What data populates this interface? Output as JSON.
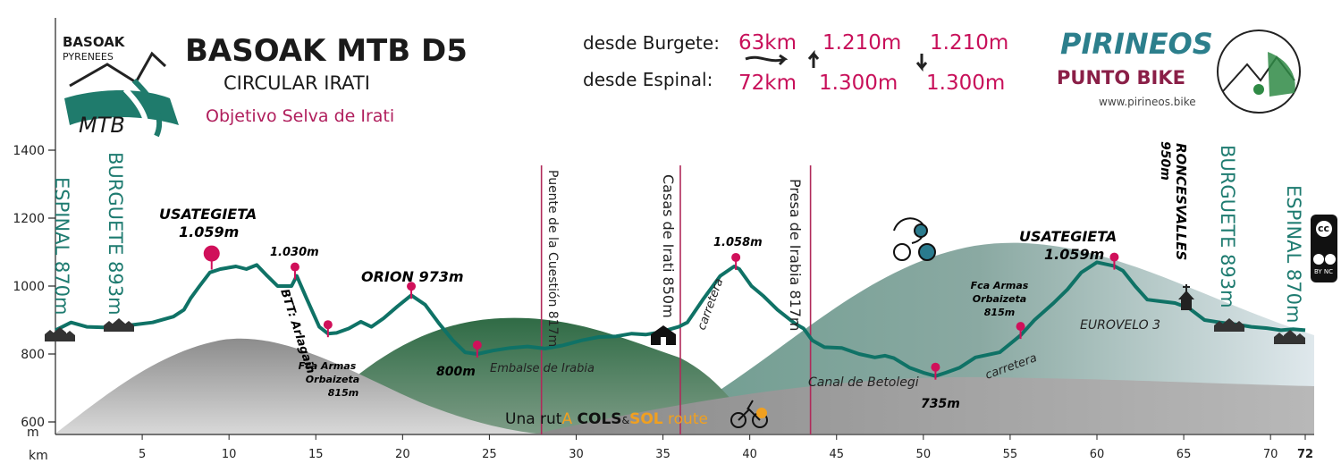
{
  "header": {
    "logo_line1": "BASOAK",
    "logo_line2": "PYRENEES",
    "logo_mtb": "MTB",
    "title": "BASOAK MTB D5",
    "subtitle": "CIRCULAR IRATI",
    "objective": "Objetivo Selva de Irati",
    "stats": [
      {
        "label": "desde Burgete:",
        "distance": "63km",
        "ascent": "1.210m",
        "descent": "1.210m"
      },
      {
        "label": "desde Espinal:",
        "distance": "72km",
        "ascent": "1.300m",
        "descent": "1.300m"
      }
    ],
    "brand_line1": "PIRINEOS",
    "brand_line2": "PUNTO BIKE",
    "brand_url": "www.pirineos.bike",
    "footer_route": {
      "p1": "Una rut",
      "p2": "A ",
      "p3": "COLS",
      "p4": "&",
      "p5": "SOL",
      "p6": " route"
    }
  },
  "colors": {
    "profile_line": "#0f7266",
    "marker": "#d0105a",
    "divider": "#b02a5a",
    "town": "#1e7b70",
    "brand_teal": "#2c7f8c",
    "brand_maroon": "#8a1f47"
  },
  "chart_data": {
    "type": "area",
    "title": "",
    "xlabel": "km",
    "ylabel": "m",
    "xlim": [
      0,
      72
    ],
    "ylim": [
      580,
      1450
    ],
    "x_ticks": [
      5,
      10,
      15,
      20,
      25,
      30,
      35,
      40,
      45,
      50,
      55,
      60,
      65,
      70,
      72
    ],
    "y_ticks": [
      600,
      800,
      1000,
      1200,
      1400
    ],
    "series": [
      {
        "x": [
          0,
          0.9,
          1.8,
          3,
          4.3,
          5.6,
          6.8,
          7.4,
          7.8,
          8.3,
          8.9,
          9.5,
          10.4,
          11,
          11.6,
          12.2,
          12.8,
          13.6,
          13.9,
          14.5,
          15.2,
          15.7,
          16.2,
          16.9,
          17.6,
          18.2,
          18.9,
          19.7,
          20.5,
          21.3,
          22.1,
          22.9,
          23.6,
          24.3,
          25.2,
          26.2,
          27.2,
          28.2,
          29.2,
          30.3,
          31.3,
          32.3,
          33.2,
          34,
          34.6,
          35.2,
          35.9,
          36.4,
          37.3,
          38.3,
          39.1,
          39.4,
          40.1,
          40.8,
          41.6,
          42.6,
          43.1,
          43.6,
          44.3,
          45.3,
          46.3,
          47.2,
          47.8,
          48.3,
          49.2,
          50,
          50.7,
          51.3,
          52.1,
          53,
          54.4,
          55.6,
          56.4,
          57.5,
          58.3,
          59.1,
          60,
          61,
          61.5,
          62.2,
          62.9,
          63.7,
          64.5,
          65.3,
          66.2,
          67.1,
          68,
          68.9,
          69.8,
          70.6,
          71.3,
          72
        ],
        "y": [
          870,
          893,
          880,
          878,
          885,
          893,
          910,
          930,
          965,
          1000,
          1040,
          1050,
          1058,
          1050,
          1062,
          1030,
          1000,
          1000,
          1030,
          960,
          880,
          860,
          862,
          875,
          895,
          880,
          905,
          940,
          973,
          945,
          890,
          840,
          805,
          800,
          810,
          818,
          822,
          816,
          825,
          840,
          850,
          852,
          860,
          857,
          862,
          870,
          880,
          893,
          960,
          1030,
          1058,
          1050,
          1000,
          970,
          930,
          890,
          875,
          840,
          820,
          818,
          800,
          790,
          795,
          788,
          760,
          745,
          735,
          745,
          760,
          790,
          805,
          855,
          900,
          950,
          990,
          1040,
          1070,
          1059,
          1045,
          1000,
          960,
          955,
          950,
          935,
          900,
          893,
          887,
          880,
          876,
          870,
          873,
          870
        ]
      }
    ],
    "background_hills": true
  },
  "labels": {
    "peaks": [
      {
        "name": "USATEGIETA",
        "alt": "1.059m",
        "km": 9
      },
      {
        "name": "",
        "alt": "1.030m",
        "km": 13.8
      },
      {
        "name": "ORION",
        "alt": "973m",
        "km": 20.5
      },
      {
        "name": "",
        "alt": "1.058m",
        "km": 39.2
      },
      {
        "name": "USATEGIETA",
        "alt": "1.059m",
        "km": 61
      }
    ],
    "lows": [
      {
        "alt": "800m",
        "km": 24.3
      },
      {
        "alt": "735m",
        "km": 50.7
      }
    ],
    "fca1": [
      "Fca Armas",
      "Orbaizeta",
      "815m"
    ],
    "fca2": [
      "Fca Armas",
      "Orbaizeta",
      "815m"
    ],
    "btt": "BTT: Arlagain",
    "embalse": "Embalse de Irabia",
    "carretera1": "carretera",
    "canal": "Canal de Betolegi",
    "carretera2": "carretera",
    "eurovelo": "EUROVELO 3",
    "roncesvalles": "RONCESVALLES",
    "roncesvalles_alt": "950m",
    "dividers": [
      {
        "text": "Puente de la Cuestión 817m",
        "km": 28
      },
      {
        "text": "Casas de Irati 850m",
        "km": 36
      },
      {
        "text": "Presa de Irabia 817m",
        "km": 43.5
      }
    ],
    "towns": [
      {
        "text": "ESPINAL 870m",
        "km": 0.3
      },
      {
        "text": "BURGUETE 893m",
        "km": 4
      },
      {
        "text": "BURGUETE 893m",
        "km": 67.6
      },
      {
        "text": "ESPINAL 870m",
        "km": 71.2
      }
    ]
  },
  "license": {
    "top": "cc",
    "bottom": "BY NC"
  }
}
